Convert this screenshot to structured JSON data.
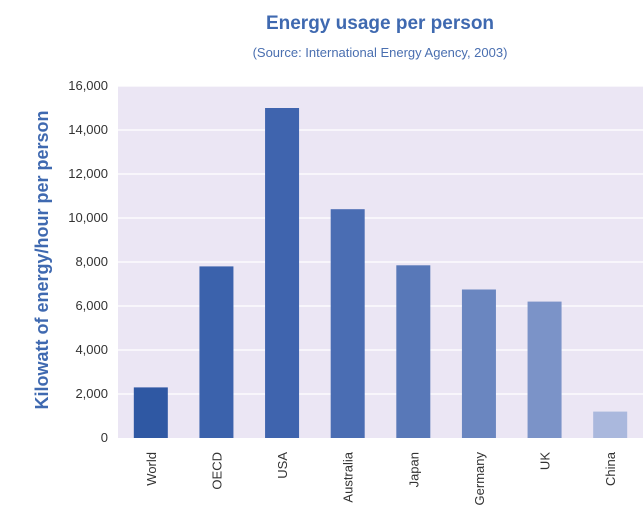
{
  "chart_data": {
    "type": "bar",
    "title": "Energy usage per person",
    "subtitle": "(Source: International Energy Agency, 2003)",
    "xlabel": "",
    "ylabel": "Kilowatt of energy/hour per person",
    "categories": [
      "World",
      "OECD",
      "USA",
      "Australia",
      "Japan",
      "Germany",
      "UK",
      "China"
    ],
    "values": [
      2300,
      7800,
      15000,
      10400,
      7850,
      6750,
      6200,
      1200
    ],
    "ylim": [
      0,
      16000
    ],
    "yticks": [
      "0",
      "2,000",
      "4,000",
      "6,000",
      "8,000",
      "10,000",
      "12,000",
      "14,000",
      "16,000"
    ],
    "ytick_values": [
      0,
      2000,
      4000,
      6000,
      8000,
      10000,
      12000,
      14000,
      16000
    ],
    "grid": true,
    "legend": "none",
    "colors": {
      "plot_background": "#ebe6f4",
      "gridline": "#ffffff",
      "bars": [
        "#2f58a3",
        "#3b62ac",
        "#3f64ae",
        "#4a6db3",
        "#5878b8",
        "#6a86c0",
        "#7b93c8",
        "#aab8dd"
      ],
      "title": "#3f69b0"
    }
  }
}
